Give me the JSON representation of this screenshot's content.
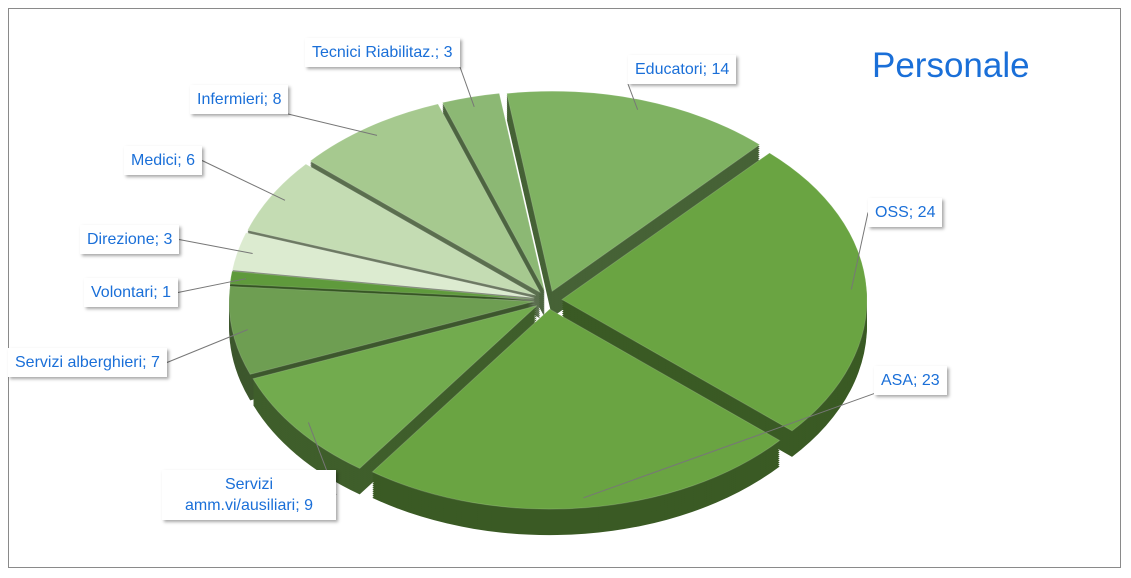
{
  "chart_data": {
    "type": "pie",
    "title": "Personale",
    "categories": [
      "Educatori",
      "OSS",
      "ASA",
      "Servizi amm.vi/ausiliari",
      "Servizi alberghieri",
      "Volontari",
      "Direzione",
      "Medici",
      "Infermieri",
      "Tecnici Riabilitaz."
    ],
    "values": [
      14,
      24,
      23,
      9,
      7,
      1,
      3,
      6,
      8,
      3
    ],
    "value_labels": [
      "Educatori; 14",
      "OSS; 24",
      "ASA; 23",
      "Servizi amm.vi/ausiliari; 9",
      "Servizi alberghieri; 7",
      "Volontari; 1",
      "Direzione; 3",
      "Medici; 6",
      "Infermieri; 8",
      "Tecnici Riabilitaz.; 3"
    ],
    "colors": [
      "#7fb262",
      "#6aa442",
      "#6aa442",
      "#72ab4e",
      "#6e9e52",
      "#5f9a3c",
      "#dcebd0",
      "#c4dcb3",
      "#a6c98f",
      "#8cb874"
    ]
  }
}
